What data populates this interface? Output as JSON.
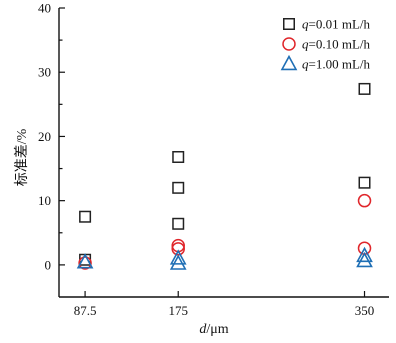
{
  "chart_data": {
    "type": "scatter",
    "xlabel": {
      "var": "d",
      "unit": "/μm"
    },
    "ylabel": "标准差/%",
    "x_ticks": [
      87.5,
      175,
      350
    ],
    "y_ticks": [
      0,
      10,
      20,
      30,
      40
    ],
    "xlim": [
      63,
      373
    ],
    "ylim": [
      -5,
      40
    ],
    "grid": false,
    "legend_position": "top-right",
    "series": [
      {
        "name": {
          "var": "q",
          "rest": "=0.01 mL/h"
        },
        "marker": "square",
        "color": "#222222",
        "points": [
          [
            87.5,
            7.5
          ],
          [
            87.5,
            0.8
          ],
          [
            175,
            16.8
          ],
          [
            175,
            12.0
          ],
          [
            175,
            6.4
          ],
          [
            350,
            27.4
          ],
          [
            350,
            12.8
          ]
        ]
      },
      {
        "name": {
          "var": "q",
          "rest": "=0.10 mL/h"
        },
        "marker": "circle",
        "color": "#e0262b",
        "points": [
          [
            87.5,
            0.3
          ],
          [
            175,
            3.0
          ],
          [
            175,
            2.5
          ],
          [
            350,
            10.0
          ],
          [
            350,
            2.6
          ]
        ]
      },
      {
        "name": {
          "var": "q",
          "rest": "=1.00 mL/h"
        },
        "marker": "triangle",
        "color": "#1f6fb5",
        "points": [
          [
            87.5,
            0.4
          ],
          [
            175,
            1.0
          ],
          [
            175,
            0.2
          ],
          [
            350,
            1.4
          ],
          [
            350,
            0.6
          ]
        ]
      }
    ]
  }
}
